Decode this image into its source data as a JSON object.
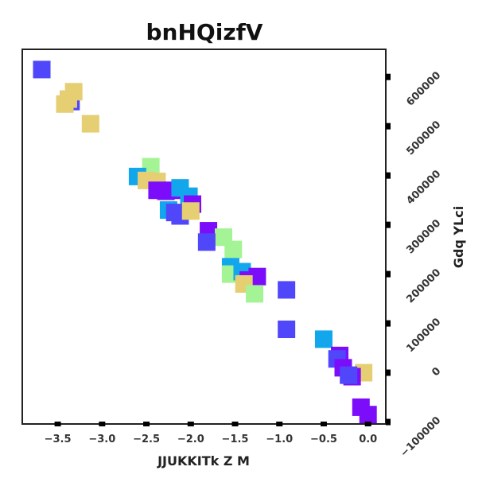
{
  "chart_data": {
    "type": "scatter",
    "title": "bnHQizfV",
    "xlabel": "JJUKKITk  Z M",
    "ylabel": "Gdq YLci",
    "xlim": [
      -3.9,
      0.2
    ],
    "ylim": [
      -104000,
      656000
    ],
    "x_ticks": [
      -3.5,
      -3.0,
      -2.5,
      -2.0,
      -1.5,
      -1.0,
      -0.5,
      0.0
    ],
    "x_tick_labels": [
      "−3.5",
      "−3.0",
      "−2.5",
      "−2.0",
      "−1.5",
      "−1.0",
      "−0.5",
      "0.0"
    ],
    "y_ticks": [
      -100000,
      0,
      100000,
      200000,
      300000,
      400000,
      500000,
      600000
    ],
    "y_tick_labels": [
      "−100000",
      "0",
      "100000",
      "200000",
      "300000",
      "400000",
      "500000",
      "600000"
    ],
    "y_axis_side": "right",
    "grid": false,
    "marker": "square",
    "colors": {
      "indigo": "#5046FA",
      "sand": "#E6CE72",
      "mint": "#A4F495",
      "azure": "#12A7EC",
      "violet": "#7B0DFB"
    },
    "points": [
      {
        "x": -3.68,
        "y": 615000,
        "c": "indigo"
      },
      {
        "x": -3.35,
        "y": 550000,
        "c": "indigo"
      },
      {
        "x": -3.32,
        "y": 570000,
        "c": "sand"
      },
      {
        "x": -3.38,
        "y": 555000,
        "c": "sand"
      },
      {
        "x": -3.42,
        "y": 545000,
        "c": "sand"
      },
      {
        "x": -3.13,
        "y": 505000,
        "c": "sand"
      },
      {
        "x": -2.45,
        "y": 418000,
        "c": "mint"
      },
      {
        "x": -2.6,
        "y": 398000,
        "c": "azure"
      },
      {
        "x": -2.5,
        "y": 390000,
        "c": "sand"
      },
      {
        "x": -2.38,
        "y": 388000,
        "c": "sand"
      },
      {
        "x": -2.38,
        "y": 370000,
        "c": "violet"
      },
      {
        "x": -2.28,
        "y": 368000,
        "c": "violet"
      },
      {
        "x": -2.2,
        "y": 370000,
        "c": "violet"
      },
      {
        "x": -2.12,
        "y": 375000,
        "c": "azure"
      },
      {
        "x": -2.02,
        "y": 358000,
        "c": "azure"
      },
      {
        "x": -1.98,
        "y": 342000,
        "c": "violet"
      },
      {
        "x": -2.25,
        "y": 330000,
        "c": "azure"
      },
      {
        "x": -2.18,
        "y": 325000,
        "c": "indigo"
      },
      {
        "x": -2.12,
        "y": 318000,
        "c": "indigo"
      },
      {
        "x": -2.0,
        "y": 328000,
        "c": "sand"
      },
      {
        "x": -1.8,
        "y": 288000,
        "c": "violet"
      },
      {
        "x": -1.63,
        "y": 275000,
        "c": "mint"
      },
      {
        "x": -1.82,
        "y": 265000,
        "c": "indigo"
      },
      {
        "x": -1.52,
        "y": 250000,
        "c": "mint"
      },
      {
        "x": -1.55,
        "y": 215000,
        "c": "azure"
      },
      {
        "x": -1.55,
        "y": 200000,
        "c": "mint"
      },
      {
        "x": -1.42,
        "y": 205000,
        "c": "azure"
      },
      {
        "x": -1.25,
        "y": 195000,
        "c": "violet"
      },
      {
        "x": -1.35,
        "y": 188000,
        "c": "violet"
      },
      {
        "x": -1.4,
        "y": 180000,
        "c": "sand"
      },
      {
        "x": -1.28,
        "y": 160000,
        "c": "mint"
      },
      {
        "x": -0.92,
        "y": 168000,
        "c": "indigo"
      },
      {
        "x": -0.92,
        "y": 88000,
        "c": "indigo"
      },
      {
        "x": -0.5,
        "y": 68000,
        "c": "azure"
      },
      {
        "x": -0.32,
        "y": 35000,
        "c": "violet"
      },
      {
        "x": -0.35,
        "y": 28000,
        "c": "indigo"
      },
      {
        "x": -0.28,
        "y": 10000,
        "c": "violet"
      },
      {
        "x": -0.05,
        "y": 0,
        "c": "sand"
      },
      {
        "x": -0.18,
        "y": -8000,
        "c": "violet"
      },
      {
        "x": -0.22,
        "y": -5000,
        "c": "indigo"
      },
      {
        "x": -0.08,
        "y": -70000,
        "c": "violet"
      },
      {
        "x": 0.0,
        "y": -85000,
        "c": "violet"
      }
    ]
  }
}
